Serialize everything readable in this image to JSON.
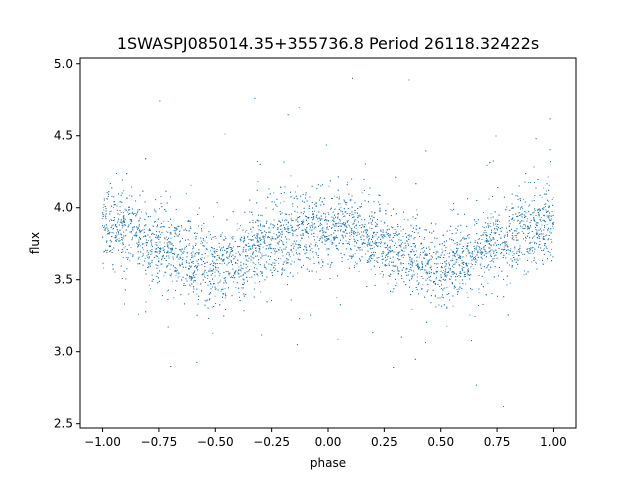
{
  "chart_data": {
    "type": "scatter",
    "title": "1SWASPJ085014.35+355736.8 Period 26118.32422s",
    "xlabel": "phase",
    "ylabel": "flux",
    "xlim": [
      -1.1,
      1.1
    ],
    "ylim": [
      2.47,
      5.04
    ],
    "xticks": [
      -1.0,
      -0.75,
      -0.5,
      -0.25,
      0.0,
      0.25,
      0.5,
      0.75,
      1.0
    ],
    "xtick_labels": [
      "−1.00",
      "−0.75",
      "−0.50",
      "−0.25",
      "0.00",
      "0.25",
      "0.50",
      "0.75",
      "1.00"
    ],
    "yticks": [
      2.5,
      3.0,
      3.5,
      4.0,
      4.5,
      5.0
    ],
    "ytick_labels": [
      "2.5",
      "3.0",
      "3.5",
      "4.0",
      "4.5",
      "5.0"
    ],
    "grid": false,
    "point_color": "#1f77b4",
    "series": [
      {
        "x": [
          -1.0,
          -0.9,
          -0.8,
          -0.7,
          -0.6,
          -0.5,
          -0.4,
          -0.3,
          -0.2,
          -0.1,
          0.0,
          0.1,
          0.2,
          0.3,
          0.4,
          0.5,
          0.6,
          0.7,
          0.8,
          0.9,
          1.0
        ],
        "y": [
          3.87,
          3.84,
          3.78,
          3.71,
          3.63,
          3.58,
          3.63,
          3.72,
          3.8,
          3.85,
          3.87,
          3.84,
          3.78,
          3.71,
          3.63,
          3.58,
          3.63,
          3.72,
          3.8,
          3.85,
          3.87
        ],
        "scatter_sd": 0.13
      }
    ]
  }
}
